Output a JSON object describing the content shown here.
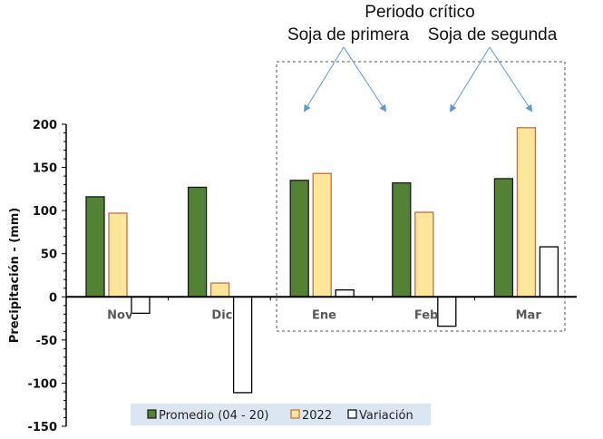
{
  "chart_data": {
    "type": "bar",
    "title": "",
    "xlabel": "",
    "ylabel": "Precipitación - (mm)",
    "ylim": [
      -150,
      200
    ],
    "yticks": [
      "200",
      "150",
      "100",
      "50",
      "0",
      "-50",
      "-100",
      "-150"
    ],
    "ytick_values": [
      200,
      150,
      100,
      50,
      0,
      -50,
      -100,
      -150
    ],
    "categories": [
      "Nov",
      "Dic",
      "Ene",
      "Feb",
      "Mar"
    ],
    "series": [
      {
        "name": "Promedio (04 - 20)",
        "values": [
          116,
          127,
          135,
          132,
          137
        ],
        "color": "#548235",
        "stroke": "#1a1a1a"
      },
      {
        "name": "2022",
        "values": [
          97,
          16,
          143,
          98,
          196
        ],
        "color": "#FFE699",
        "stroke": "#C0704A"
      },
      {
        "name": "Variación",
        "values": [
          -19,
          -111,
          8,
          -34,
          58
        ],
        "color": "#FFFFFF",
        "stroke": "#000000"
      }
    ],
    "legend_position": "bottom",
    "grid": false,
    "annotations": {
      "header": "Periodo crítico",
      "left": "Soja de primera",
      "right": "Soja de segunda"
    },
    "arrow_color": "#5B9BD5",
    "legend_bg": "#DCE6F2"
  }
}
